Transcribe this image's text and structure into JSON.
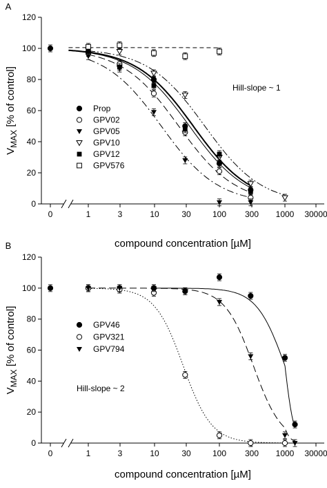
{
  "chart_data": [
    {
      "panel": "A",
      "type": "scatter",
      "xlabel": "compound concentration [µM]",
      "ylabel": "V",
      "ylabel_sub": "MAX",
      "ylabel_suffix": " [% of control]",
      "x_scale": "log (with 0 point and axis break)",
      "x_ticks": [
        "0",
        "1",
        "3",
        "10",
        "30",
        "100",
        "300",
        "1000",
        "30000"
      ],
      "ylim": [
        0,
        120
      ],
      "y_ticks": [
        "0",
        "20",
        "40",
        "60",
        "80",
        "100",
        "120"
      ],
      "annotation": "Hill-slope ~ 1",
      "legend_position": "left",
      "series": [
        {
          "name": "Prop",
          "marker": "filled-circle",
          "line": "solid-thick",
          "points": [
            {
              "x": 0,
              "y": 100
            },
            {
              "x": 1,
              "y": 98
            },
            {
              "x": 3,
              "y": 89
            },
            {
              "x": 10,
              "y": 80
            },
            {
              "x": 30,
              "y": 50
            },
            {
              "x": 100,
              "y": 26
            },
            {
              "x": 300,
              "y": 9
            }
          ]
        },
        {
          "name": "GPV02",
          "marker": "open-circle",
          "line": "long-dash",
          "points": [
            {
              "x": 1,
              "y": 97
            },
            {
              "x": 3,
              "y": 90
            },
            {
              "x": 10,
              "y": 71
            },
            {
              "x": 30,
              "y": 46
            },
            {
              "x": 100,
              "y": 21
            },
            {
              "x": 300,
              "y": 4
            }
          ]
        },
        {
          "name": "GPV05",
          "marker": "filled-triangle-down",
          "line": "dash-dot",
          "points": [
            {
              "x": 1,
              "y": 95
            },
            {
              "x": 3,
              "y": 87
            },
            {
              "x": 10,
              "y": 59
            },
            {
              "x": 30,
              "y": 28
            },
            {
              "x": 100,
              "y": 1
            },
            {
              "x": 300,
              "y": 1
            }
          ]
        },
        {
          "name": "GPV10",
          "marker": "open-triangle-down",
          "line": "dash-dot-dot",
          "points": [
            {
              "x": 1,
              "y": 99
            },
            {
              "x": 3,
              "y": 98
            },
            {
              "x": 10,
              "y": 84
            },
            {
              "x": 30,
              "y": 70
            },
            {
              "x": 100,
              "y": 30
            },
            {
              "x": 300,
              "y": 13
            },
            {
              "x": 1000,
              "y": 4
            }
          ]
        },
        {
          "name": "GPV12",
          "marker": "filled-square",
          "line": "solid",
          "points": [
            {
              "x": 1,
              "y": 98
            },
            {
              "x": 3,
              "y": 88
            },
            {
              "x": 10,
              "y": 76
            },
            {
              "x": 30,
              "y": 48
            },
            {
              "x": 100,
              "y": 32
            },
            {
              "x": 300,
              "y": 8
            }
          ]
        },
        {
          "name": "GPV576",
          "marker": "open-square",
          "line": "dash-flat",
          "points": [
            {
              "x": 1,
              "y": 101
            },
            {
              "x": 3,
              "y": 102
            },
            {
              "x": 10,
              "y": 97
            },
            {
              "x": 30,
              "y": 95
            },
            {
              "x": 100,
              "y": 98
            }
          ]
        }
      ],
      "curves": [
        {
          "series": "Prop",
          "top": 100,
          "ic50": 40,
          "hill": 1.0,
          "x_from": 0.5,
          "x_to": 300
        },
        {
          "series": "GPV02",
          "top": 100,
          "ic50": 24,
          "hill": 1.0,
          "x_from": 1,
          "x_to": 300
        },
        {
          "series": "GPV05",
          "top": 100,
          "ic50": 13,
          "hill": 1.0,
          "x_from": 1,
          "x_to": 300
        },
        {
          "series": "GPV10",
          "top": 100,
          "ic50": 60,
          "hill": 1.0,
          "x_from": 1,
          "x_to": 1000
        },
        {
          "series": "GPV12",
          "top": 100,
          "ic50": 35,
          "hill": 1.0,
          "x_from": 0.5,
          "x_to": 300
        },
        {
          "series": "GPV576",
          "top": 100.5,
          "ic50": 100000,
          "hill": 1.0,
          "x_from": 0.5,
          "x_to": 100
        }
      ]
    },
    {
      "panel": "B",
      "type": "scatter",
      "xlabel": "compound concentration [µM]",
      "ylabel": "V",
      "ylabel_sub": "MAX",
      "ylabel_suffix": " [% of control]",
      "x_scale": "log (with 0 point and axis break)",
      "x_ticks": [
        "0",
        "1",
        "3",
        "10",
        "30",
        "100",
        "300",
        "1000",
        "30000"
      ],
      "ylim": [
        0,
        120
      ],
      "y_ticks": [
        "0",
        "20",
        "40",
        "60",
        "80",
        "100",
        "120"
      ],
      "annotation": "Hill-slope ~ 2",
      "legend_position": "left",
      "series": [
        {
          "name": "GPV46",
          "marker": "filled-circle",
          "line": "solid",
          "points": [
            {
              "x": 0,
              "y": 100
            },
            {
              "x": 1,
              "y": 100
            },
            {
              "x": 3,
              "y": 100
            },
            {
              "x": 10,
              "y": 100
            },
            {
              "x": 30,
              "y": 98
            },
            {
              "x": 100,
              "y": 107
            },
            {
              "x": 300,
              "y": 95
            },
            {
              "x": 1000,
              "y": 55
            },
            {
              "x": 3000,
              "y": 12
            }
          ]
        },
        {
          "name": "GPV321",
          "marker": "open-circle",
          "line": "dotted",
          "points": [
            {
              "x": 1,
              "y": 100
            },
            {
              "x": 3,
              "y": 99
            },
            {
              "x": 10,
              "y": 97
            },
            {
              "x": 30,
              "y": 44
            },
            {
              "x": 100,
              "y": 5
            },
            {
              "x": 300,
              "y": 0
            },
            {
              "x": 1000,
              "y": 0
            }
          ]
        },
        {
          "name": "GPV794",
          "marker": "filled-triangle-down",
          "line": "long-dash",
          "points": [
            {
              "x": 1,
              "y": 100
            },
            {
              "x": 3,
              "y": 100
            },
            {
              "x": 10,
              "y": 100
            },
            {
              "x": 30,
              "y": 98
            },
            {
              "x": 100,
              "y": 91
            },
            {
              "x": 300,
              "y": 56
            },
            {
              "x": 1000,
              "y": 5
            },
            {
              "x": 3000,
              "y": 0
            }
          ]
        }
      ],
      "curves": [
        {
          "series": "GPV46",
          "top": 100,
          "ic50": 1000,
          "hill": 2.0,
          "x_from": 10,
          "x_to": 3000
        },
        {
          "series": "GPV321",
          "top": 100,
          "ic50": 28,
          "hill": 2.0,
          "x_from": 1,
          "x_to": 3000
        },
        {
          "series": "GPV794",
          "top": 100,
          "ic50": 330,
          "hill": 2.0,
          "x_from": 1,
          "x_to": 3000
        }
      ]
    }
  ]
}
